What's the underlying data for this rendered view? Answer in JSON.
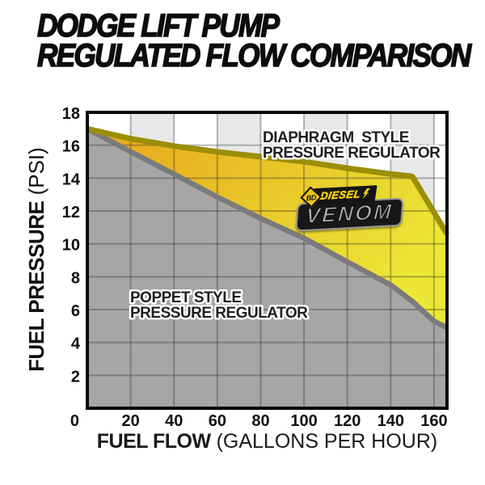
{
  "title": {
    "line1": "DODGE LIFT PUMP",
    "line2": "REGULATED FLOW COMPARISON"
  },
  "chart_data": {
    "type": "area",
    "title": "Dodge lift pump regulated flow comparison",
    "xlabel_bold": "FUEL FLOW",
    "xlabel_rest": "(GALLONS PER HOUR)",
    "ylabel_bold": "FUEL PRESSURE",
    "ylabel_rest": "(PSI)",
    "xlim": [
      0,
      166
    ],
    "ylim": [
      0,
      18
    ],
    "x_ticks": [
      20,
      40,
      60,
      80,
      100,
      120,
      140,
      160
    ],
    "y_ticks": [
      0,
      2,
      4,
      6,
      8,
      10,
      12,
      14,
      16,
      18
    ],
    "origin_label": "0",
    "grid": true,
    "legend_position": "inline-labels",
    "series": [
      {
        "name": "Diaphragm style pressure regulator",
        "color": "#9b8e08",
        "points": [
          [
            0,
            17
          ],
          [
            20,
            16.4
          ],
          [
            40,
            15.95
          ],
          [
            60,
            15.6
          ],
          [
            80,
            15.3
          ],
          [
            100,
            15
          ],
          [
            120,
            14.6
          ],
          [
            140,
            14.25
          ],
          [
            150,
            14.1
          ],
          [
            166,
            10.6
          ]
        ]
      },
      {
        "name": "Poppet style pressure regulator",
        "color": "#7b7b7b",
        "points": [
          [
            0,
            17
          ],
          [
            20,
            15.6
          ],
          [
            40,
            14.25
          ],
          [
            60,
            12.85
          ],
          [
            80,
            11.55
          ],
          [
            100,
            10.35
          ],
          [
            120,
            8.9
          ],
          [
            140,
            7.5
          ],
          [
            150,
            6.5
          ],
          [
            160,
            5.3
          ],
          [
            166,
            4.9
          ]
        ]
      }
    ],
    "annotations": {
      "diaphragm": {
        "line1": "DIAPHRAGM  STYLE",
        "line2": "PRESSURE REGULATOR"
      },
      "poppet": {
        "line1": "POPPET STYLE",
        "line2": "PRESSURE REGULATOR"
      }
    },
    "colors": {
      "between_fill_gradient": [
        "#e6a51c",
        "#ece735"
      ],
      "below_fill": "#a6a6a6",
      "band_light": "#ffffff",
      "band_dark": "#e8e8e8",
      "gridline": "rgba(40,40,40,0.33)",
      "border": "#050505"
    }
  },
  "logo": {
    "bd": "BD",
    "diesel": "DIESEL",
    "venom": "VENOM"
  }
}
